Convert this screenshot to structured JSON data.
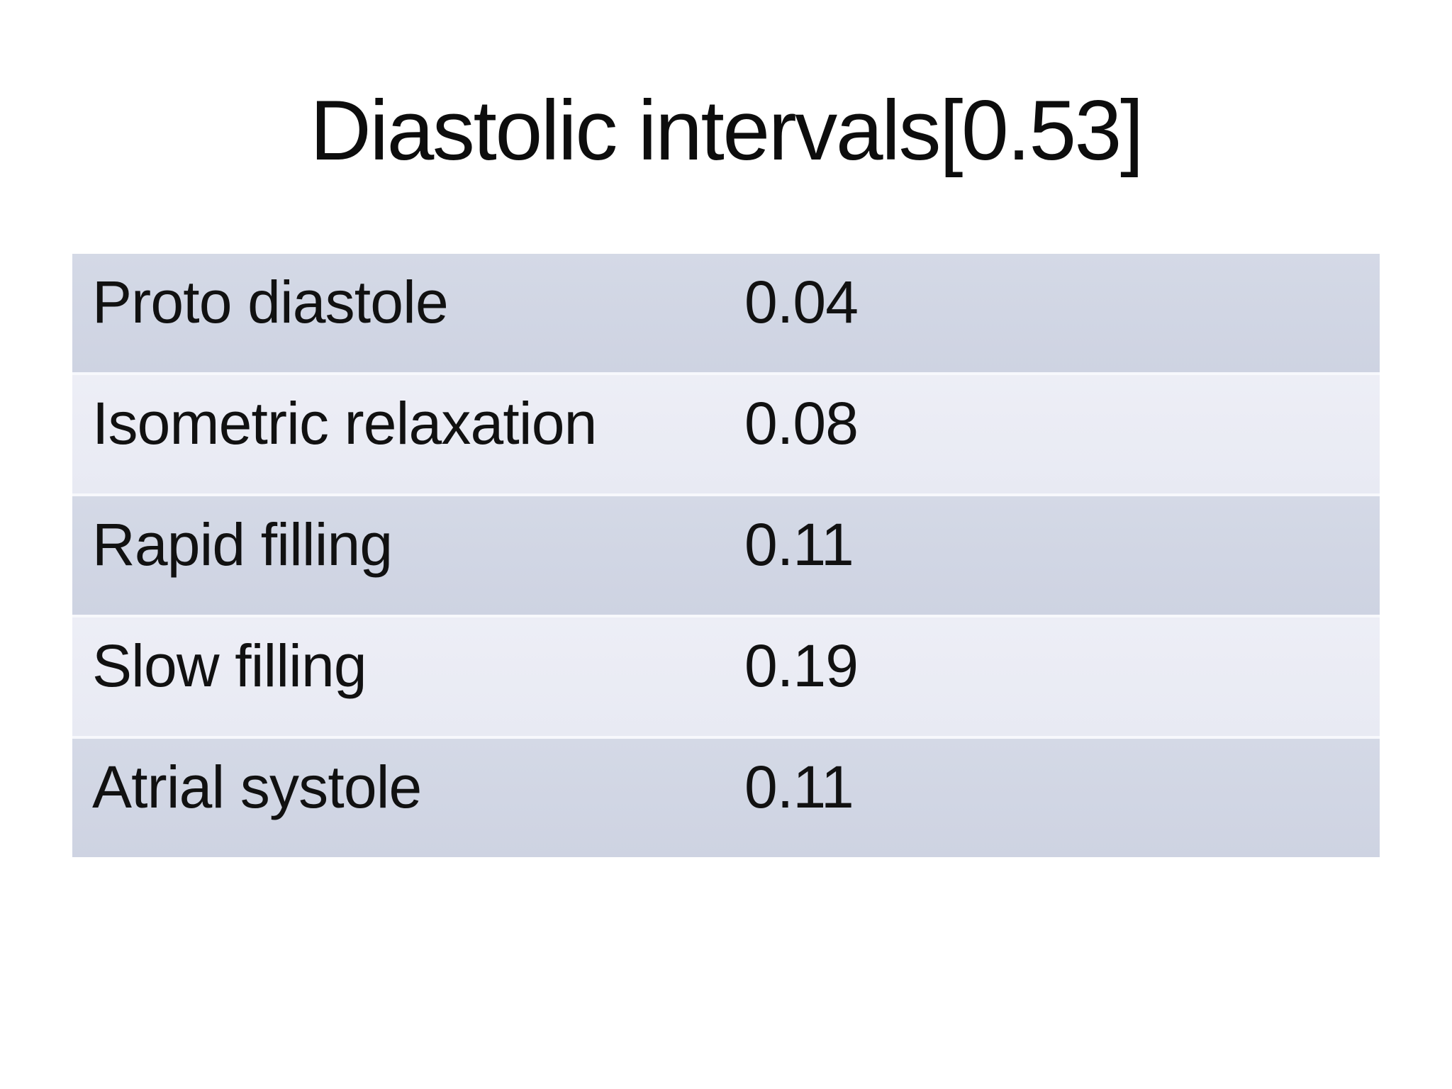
{
  "slide": {
    "title": "Diastolic intervals[0.53]"
  },
  "table": {
    "rows": [
      {
        "label": "Proto diastole",
        "value": "0.04"
      },
      {
        "label": "Isometric relaxation",
        "value": "0.08"
      },
      {
        "label": "Rapid filling",
        "value": "0.11"
      },
      {
        "label": "Slow filling",
        "value": "0.19"
      },
      {
        "label": "Atrial systole",
        "value": "0.11"
      }
    ],
    "total_label_in_title": "0.53"
  },
  "colors": {
    "background": "#ffffff",
    "row_dark": "#ced3e2",
    "row_light": "#e9ebf4",
    "row_separator": "#f7f8fc",
    "text": "#111111"
  }
}
